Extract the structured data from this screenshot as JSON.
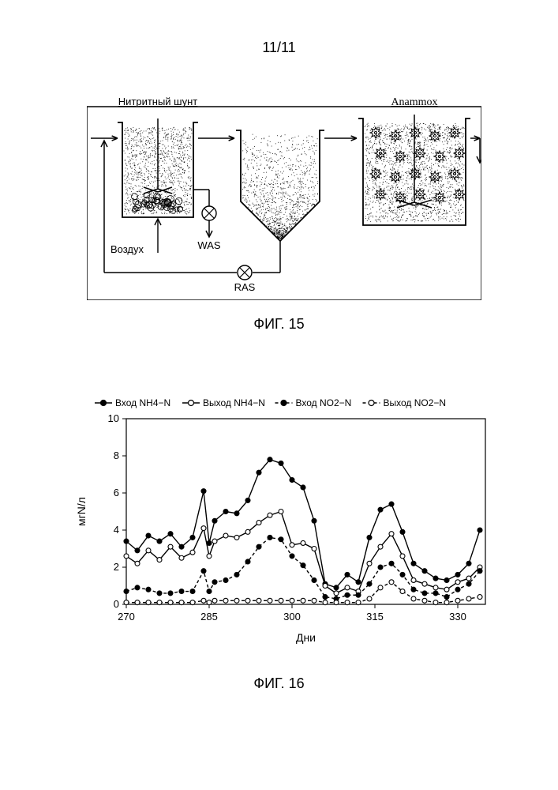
{
  "page_number": "11/11",
  "fig15": {
    "caption": "ФИГ. 15",
    "labels": {
      "shunt": "Нитритный шунт",
      "anammox": "Anammox",
      "air": "Воздух",
      "was": "WAS",
      "ras": "RAS"
    },
    "colors": {
      "stroke": "#000000",
      "fill_bg": "#ffffff",
      "stipple": "#000000"
    }
  },
  "fig16": {
    "caption": "ФИГ. 16",
    "type": "line",
    "xlabel": "Дни",
    "ylabel": "мгN/л",
    "xlim": [
      270,
      335
    ],
    "ylim": [
      0,
      10
    ],
    "xticks": [
      270,
      285,
      300,
      315,
      330
    ],
    "yticks": [
      0,
      2,
      4,
      6,
      8,
      10
    ],
    "label_fontsize": 14,
    "tick_fontsize": 13,
    "background_color": "#ffffff",
    "axis_color": "#000000",
    "series": [
      {
        "name": "Вход NH4−N",
        "marker": "filled-circle",
        "line": "solid",
        "color": "#000000",
        "x": [
          270,
          272,
          274,
          276,
          278,
          280,
          282,
          284,
          285,
          286,
          288,
          290,
          292,
          294,
          296,
          298,
          300,
          302,
          304,
          306,
          308,
          310,
          312,
          314,
          316,
          318,
          320,
          322,
          324,
          326,
          328,
          330,
          332,
          334
        ],
        "y": [
          3.4,
          2.9,
          3.7,
          3.4,
          3.8,
          3.1,
          3.6,
          6.1,
          3.3,
          4.5,
          5.0,
          4.9,
          5.6,
          7.1,
          7.8,
          7.6,
          6.7,
          6.3,
          4.5,
          1.1,
          0.9,
          1.6,
          1.2,
          3.6,
          5.1,
          5.4,
          3.9,
          2.2,
          1.8,
          1.4,
          1.3,
          1.6,
          2.2,
          4.0
        ]
      },
      {
        "name": "Выход NH4−N",
        "marker": "open-circle",
        "line": "solid",
        "color": "#000000",
        "x": [
          270,
          272,
          274,
          276,
          278,
          280,
          282,
          284,
          285,
          286,
          288,
          290,
          292,
          294,
          296,
          298,
          300,
          302,
          304,
          306,
          308,
          310,
          312,
          314,
          316,
          318,
          320,
          322,
          324,
          326,
          328,
          330,
          332,
          334
        ],
        "y": [
          2.6,
          2.2,
          2.9,
          2.4,
          3.1,
          2.5,
          2.8,
          4.1,
          2.6,
          3.4,
          3.7,
          3.6,
          3.9,
          4.4,
          4.8,
          5.0,
          3.2,
          3.3,
          3.0,
          1.0,
          0.6,
          0.9,
          0.7,
          2.2,
          3.1,
          3.8,
          2.6,
          1.3,
          1.1,
          0.9,
          0.8,
          1.2,
          1.4,
          2.0
        ]
      },
      {
        "name": "Вход NO2−N",
        "marker": "filled-circle",
        "line": "dashed",
        "color": "#000000",
        "x": [
          270,
          272,
          274,
          276,
          278,
          280,
          282,
          284,
          285,
          286,
          288,
          290,
          292,
          294,
          296,
          298,
          300,
          302,
          304,
          306,
          308,
          310,
          312,
          314,
          316,
          318,
          320,
          322,
          324,
          326,
          328,
          330,
          332,
          334
        ],
        "y": [
          0.7,
          0.9,
          0.8,
          0.6,
          0.6,
          0.7,
          0.7,
          1.8,
          0.7,
          1.2,
          1.3,
          1.6,
          2.3,
          3.1,
          3.6,
          3.5,
          2.6,
          2.1,
          1.3,
          0.4,
          0.3,
          0.5,
          0.5,
          1.1,
          2.0,
          2.2,
          1.6,
          0.8,
          0.6,
          0.6,
          0.4,
          0.8,
          1.1,
          1.8
        ]
      },
      {
        "name": "Выход NO2−N",
        "marker": "open-circle",
        "line": "dashed",
        "color": "#000000",
        "x": [
          270,
          272,
          274,
          276,
          278,
          280,
          282,
          284,
          285,
          286,
          288,
          290,
          292,
          294,
          296,
          298,
          300,
          302,
          304,
          306,
          308,
          310,
          312,
          314,
          316,
          318,
          320,
          322,
          324,
          326,
          328,
          330,
          332,
          334
        ],
        "y": [
          0.1,
          0.1,
          0.1,
          0.1,
          0.1,
          0.1,
          0.1,
          0.2,
          0.1,
          0.2,
          0.2,
          0.2,
          0.2,
          0.2,
          0.2,
          0.2,
          0.2,
          0.2,
          0.2,
          0.1,
          0.1,
          0.1,
          0.1,
          0.3,
          0.9,
          1.2,
          0.7,
          0.3,
          0.2,
          0.1,
          0.1,
          0.2,
          0.3,
          0.4
        ]
      }
    ]
  }
}
